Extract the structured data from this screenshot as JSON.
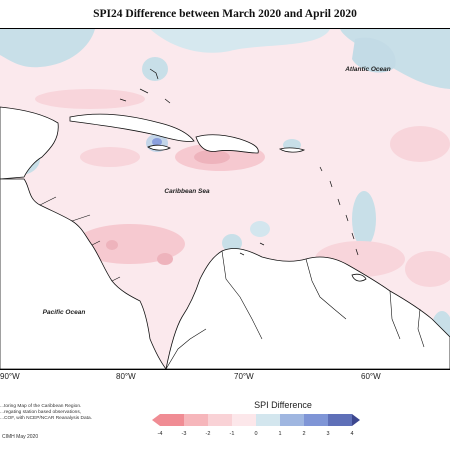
{
  "title": "SPI24 Difference between March 2020 and April 2020",
  "labels": {
    "atlantic": "Atlantic Ocean",
    "caribbean": "Caribbean Sea",
    "pacific": "Pacific Ocean"
  },
  "longitude_ticks": [
    "90°W",
    "80°W",
    "70°W",
    "60°W"
  ],
  "legend": {
    "title": "SPI Difference",
    "ticks": [
      "-4",
      "-3",
      "-2",
      "-1",
      "0",
      "1",
      "2",
      "3",
      "4"
    ],
    "colors": [
      "#f08c94",
      "#f6b6bb",
      "#f9d2d6",
      "#fce7ea",
      "#d3e6ee",
      "#9fb6e0",
      "#7f95d6",
      "#5f70b8",
      "#3c478f"
    ]
  },
  "description": [
    "...toring Map of the Caribbean Region.",
    "...regating station based observations,",
    "...COF, with NCEP/NCAR Reanalysis Data."
  ],
  "credit": "CIMH May 2020",
  "colors": {
    "land": "#ffffff",
    "ocean_base": "#fbe9ed",
    "positive": "#c8dfe8",
    "positive_strong": "#8a9fdc",
    "negative": "#f8cfd6",
    "negative_strong": "#eeb3bc"
  }
}
